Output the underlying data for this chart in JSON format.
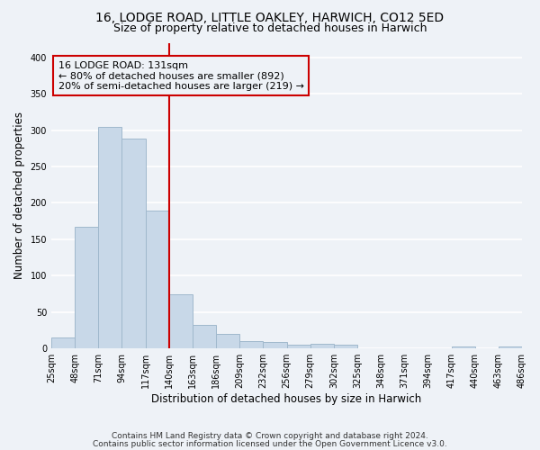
{
  "title": "16, LODGE ROAD, LITTLE OAKLEY, HARWICH, CO12 5ED",
  "subtitle": "Size of property relative to detached houses in Harwich",
  "xlabel": "Distribution of detached houses by size in Harwich",
  "ylabel": "Number of detached properties",
  "bin_labels": [
    "25sqm",
    "48sqm",
    "71sqm",
    "94sqm",
    "117sqm",
    "140sqm",
    "163sqm",
    "186sqm",
    "209sqm",
    "232sqm",
    "256sqm",
    "279sqm",
    "302sqm",
    "325sqm",
    "348sqm",
    "371sqm",
    "394sqm",
    "417sqm",
    "440sqm",
    "463sqm",
    "486sqm"
  ],
  "bar_heights": [
    15,
    167,
    305,
    288,
    190,
    75,
    32,
    20,
    10,
    9,
    5,
    6,
    5,
    0,
    0,
    0,
    0,
    3,
    0,
    3
  ],
  "bar_color": "#c8d8e8",
  "bar_edge_color": "#a0b8cc",
  "vline_x": 5.0,
  "vline_color": "#cc0000",
  "annotation_line1": "16 LODGE ROAD: 131sqm",
  "annotation_line2": "← 80% of detached houses are smaller (892)",
  "annotation_line3": "20% of semi-detached houses are larger (219) →",
  "annotation_box_color": "#cc0000",
  "ylim": [
    0,
    420
  ],
  "yticks": [
    0,
    50,
    100,
    150,
    200,
    250,
    300,
    350,
    400
  ],
  "footer_line1": "Contains HM Land Registry data © Crown copyright and database right 2024.",
  "footer_line2": "Contains public sector information licensed under the Open Government Licence v3.0.",
  "bg_color": "#eef2f7",
  "grid_color": "#ffffff",
  "title_fontsize": 10,
  "subtitle_fontsize": 9,
  "axis_label_fontsize": 8.5,
  "tick_fontsize": 7,
  "footer_fontsize": 6.5,
  "annotation_fontsize": 8
}
